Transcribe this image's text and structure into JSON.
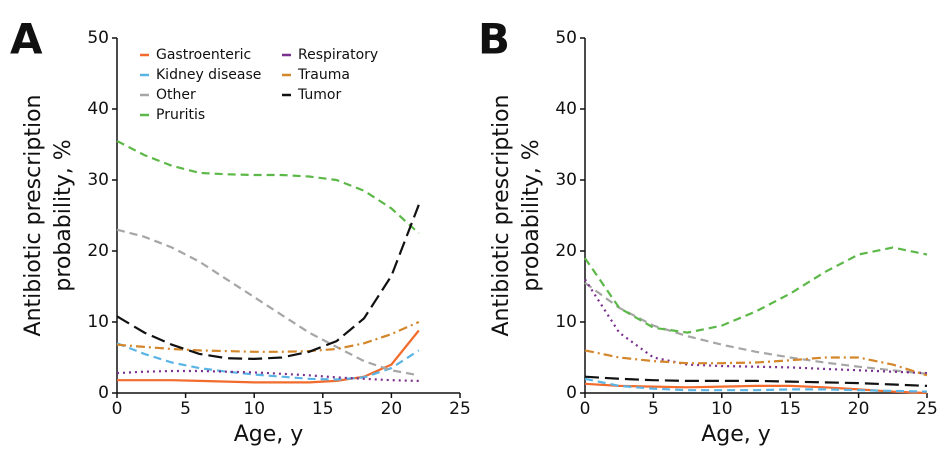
{
  "chart_data": [
    {
      "type": "line",
      "panel_label": "A",
      "xlabel": "Age, y",
      "ylabel": [
        "Antibiotic prescription",
        "probability, %"
      ],
      "xlim": [
        0,
        25
      ],
      "ylim": [
        0,
        50
      ],
      "xticks": [
        0,
        5,
        10,
        15,
        20,
        25
      ],
      "yticks": [
        0,
        10,
        20,
        30,
        40,
        50
      ],
      "grid": false,
      "legend": "upper left",
      "x": [
        0,
        2,
        4,
        6,
        8,
        10,
        12,
        14,
        16,
        18,
        20,
        22
      ],
      "series": [
        {
          "name": "Gastroenteric",
          "color": "#f26b2d",
          "dash": "solid",
          "values": [
            1.8,
            1.8,
            1.8,
            1.7,
            1.6,
            1.5,
            1.5,
            1.5,
            1.7,
            2.3,
            4,
            8.8
          ]
        },
        {
          "name": "Kidney disease",
          "color": "#5ab4e5",
          "dash": "dashed",
          "values": [
            7,
            5.5,
            4.3,
            3.5,
            3,
            2.6,
            2.3,
            2,
            1.9,
            2.2,
            3.5,
            6
          ]
        },
        {
          "name": "Other",
          "color": "#a6a6a6",
          "dash": "dashed",
          "values": [
            23,
            22,
            20.5,
            18.5,
            16,
            13.5,
            11,
            8.5,
            6.5,
            4.5,
            3.2,
            2.5
          ]
        },
        {
          "name": "Pruritis",
          "color": "#5cb848",
          "dash": "dashed",
          "values": [
            35.5,
            33.5,
            32,
            31,
            30.8,
            30.7,
            30.7,
            30.5,
            30,
            28.5,
            26,
            22.5
          ]
        },
        {
          "name": "Respiratory",
          "color": "#7b2f8e",
          "dash": "dotted",
          "values": [
            2.8,
            3,
            3.1,
            3.1,
            3,
            2.9,
            2.7,
            2.5,
            2.2,
            2,
            1.8,
            1.7
          ]
        },
        {
          "name": "Trauma",
          "color": "#d4862a",
          "dash": "dashdot",
          "values": [
            6.8,
            6.5,
            6.2,
            6,
            5.9,
            5.8,
            5.8,
            5.9,
            6.2,
            7,
            8.3,
            10
          ]
        },
        {
          "name": "Tumor",
          "color": "#111111",
          "dash": "longdash",
          "values": [
            10.8,
            8.5,
            6.8,
            5.5,
            4.9,
            4.8,
            5,
            5.8,
            7.3,
            10.5,
            16.5,
            26.5
          ]
        }
      ]
    },
    {
      "type": "line",
      "panel_label": "B",
      "xlabel": "Age, y",
      "ylabel": [
        "Antibiotic prescription",
        "probability, %"
      ],
      "xlim": [
        0,
        25
      ],
      "ylim": [
        0,
        50
      ],
      "xticks": [
        0,
        5,
        10,
        15,
        20,
        25
      ],
      "yticks": [
        0,
        10,
        20,
        30,
        40,
        50
      ],
      "grid": false,
      "x": [
        0,
        2.5,
        5,
        7.5,
        10,
        12.5,
        15,
        17.5,
        20,
        22.5,
        25
      ],
      "series": [
        {
          "color": "#f26b2d",
          "dash": "solid",
          "values": [
            1.3,
            1,
            0.9,
            0.8,
            0.9,
            1,
            1,
            0.8,
            0.5,
            0.2,
            0
          ]
        },
        {
          "color": "#5ab4e5",
          "dash": "dashed",
          "values": [
            2,
            1,
            0.6,
            0.4,
            0.4,
            0.4,
            0.5,
            0.5,
            0.4,
            0.3,
            0.2
          ]
        },
        {
          "color": "#a6a6a6",
          "dash": "dashed",
          "values": [
            15.5,
            12,
            9.5,
            8,
            6.8,
            5.8,
            5,
            4.3,
            3.7,
            3.2,
            2.7
          ]
        },
        {
          "color": "#5cb848",
          "dash": "dashed",
          "values": [
            19,
            12,
            9.2,
            8.5,
            9.5,
            11.5,
            14,
            17,
            19.5,
            20.5,
            19.5
          ]
        },
        {
          "color": "#7b2f8e",
          "dash": "dotted",
          "values": [
            16,
            8.5,
            5,
            4,
            3.8,
            3.7,
            3.6,
            3.4,
            3.2,
            3,
            2.8
          ]
        },
        {
          "color": "#d4862a",
          "dash": "dashdot",
          "values": [
            6,
            5,
            4.5,
            4.2,
            4.2,
            4.3,
            4.6,
            5,
            5,
            4,
            2.5
          ]
        },
        {
          "color": "#111111",
          "dash": "longdash",
          "values": [
            2.3,
            2,
            1.8,
            1.7,
            1.7,
            1.7,
            1.6,
            1.5,
            1.4,
            1.2,
            1
          ]
        }
      ]
    }
  ]
}
